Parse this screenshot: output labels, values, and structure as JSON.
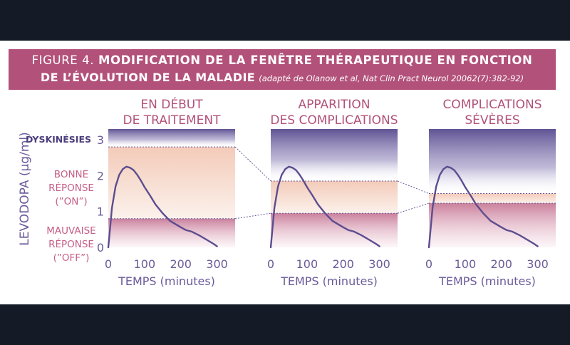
{
  "header": {
    "figure_label": "FIGURE 4.",
    "title_line1": "MODIFICATION DE LA FENÊTRE THÉRAPEUTIQUE EN FONCTION",
    "title_line2": "DE L’ÉVOLUTION DE LA MALADIE",
    "source": "(adapté de Olanow et al, Nat Clin Pract Neurol 20062(7):382-92)"
  },
  "colors": {
    "banner": "#b2517a",
    "curve": "#5c4d8f",
    "dyskinesia_text": "#4b3f7e",
    "zone_text": "#c65e86",
    "axis_text": "#6b5b9a",
    "panel_title": "#b2517a"
  },
  "chart_data": {
    "type": "line",
    "ylabel": "LEVODOPA (μg/ml)",
    "xlabel": "TEMPS (minutes)",
    "y_ticks": [
      "0",
      "1",
      "2",
      "3"
    ],
    "ylim": [
      0,
      3.3
    ],
    "x_ticks": [
      "0",
      "100",
      "200",
      "300"
    ],
    "xlim": [
      0,
      350
    ],
    "zones": [
      {
        "label": "DYSKINÉSIES",
        "color": "#574b8e"
      },
      {
        "label": "BONNE RÉPONSE (”ON”)",
        "lines": [
          "BONNE",
          "RÉPONSE",
          "(”ON”)"
        ],
        "color": "#e9a37f"
      },
      {
        "label": "MAUVAISE RÉPONSE (”OFF”)",
        "lines": [
          "MAUVAISE",
          "RÉPONSE",
          "(”OFF”)"
        ],
        "color": "#a8476b"
      }
    ],
    "levodopa_curve": {
      "x": [
        0,
        10,
        20,
        30,
        40,
        50,
        60,
        70,
        80,
        90,
        100,
        115,
        130,
        150,
        170,
        185,
        200,
        215,
        230,
        250,
        270,
        290,
        300
      ],
      "y": [
        0,
        1.1,
        1.7,
        2.02,
        2.18,
        2.25,
        2.22,
        2.15,
        2.02,
        1.86,
        1.68,
        1.45,
        1.2,
        0.95,
        0.74,
        0.65,
        0.56,
        0.48,
        0.44,
        0.34,
        0.22,
        0.1,
        0.03
      ]
    },
    "panels": [
      {
        "title": [
          "EN DÉBUT",
          "DE TRAITEMENT"
        ],
        "upper_threshold": 2.8,
        "lower_threshold": 0.8
      },
      {
        "title": [
          "APPARITION",
          "DES COMPLICATIONS"
        ],
        "upper_threshold": 1.85,
        "lower_threshold": 0.95
      },
      {
        "title": [
          "COMPLICATIONS",
          "SÉVÈRES"
        ],
        "upper_threshold": 1.5,
        "lower_threshold": 1.23
      }
    ]
  }
}
